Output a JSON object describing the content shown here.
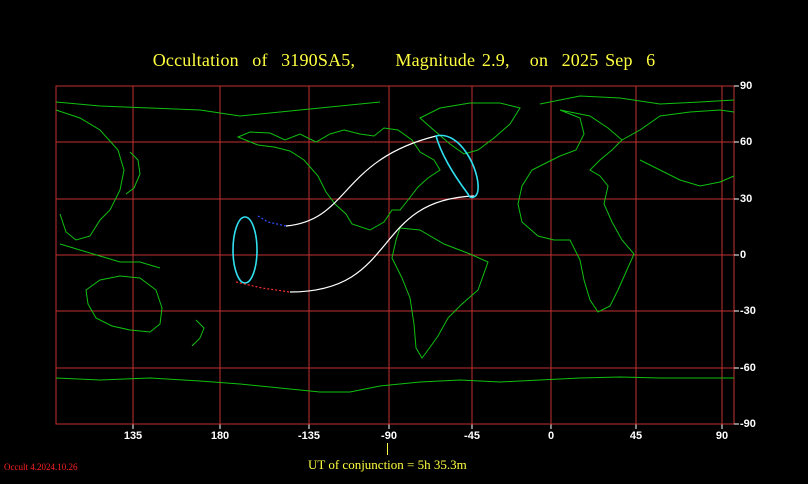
{
  "title": {
    "object": "Occultation  of  3190SA5,",
    "magnitude": "Magnitude 2.9,",
    "date": "on  2025 Sep  6"
  },
  "lon_labels": [
    "135",
    "180",
    "-135",
    "-90",
    "-45",
    "0",
    "45",
    "90"
  ],
  "lat_labels": [
    "90",
    "60",
    "30",
    "0",
    "-30",
    "-60",
    "-90"
  ],
  "ut_conjunction": "UT of conjunction =  5h 35.3m",
  "version": "Occult 4.2024.10.26",
  "colors": {
    "grid": "#c03030",
    "coast": "#10c010",
    "path": "#ffffff",
    "limit": "#30e0f0",
    "title": "#ffff40",
    "dotted_red": "#ff3030",
    "dotted_blue": "#3050ff"
  }
}
